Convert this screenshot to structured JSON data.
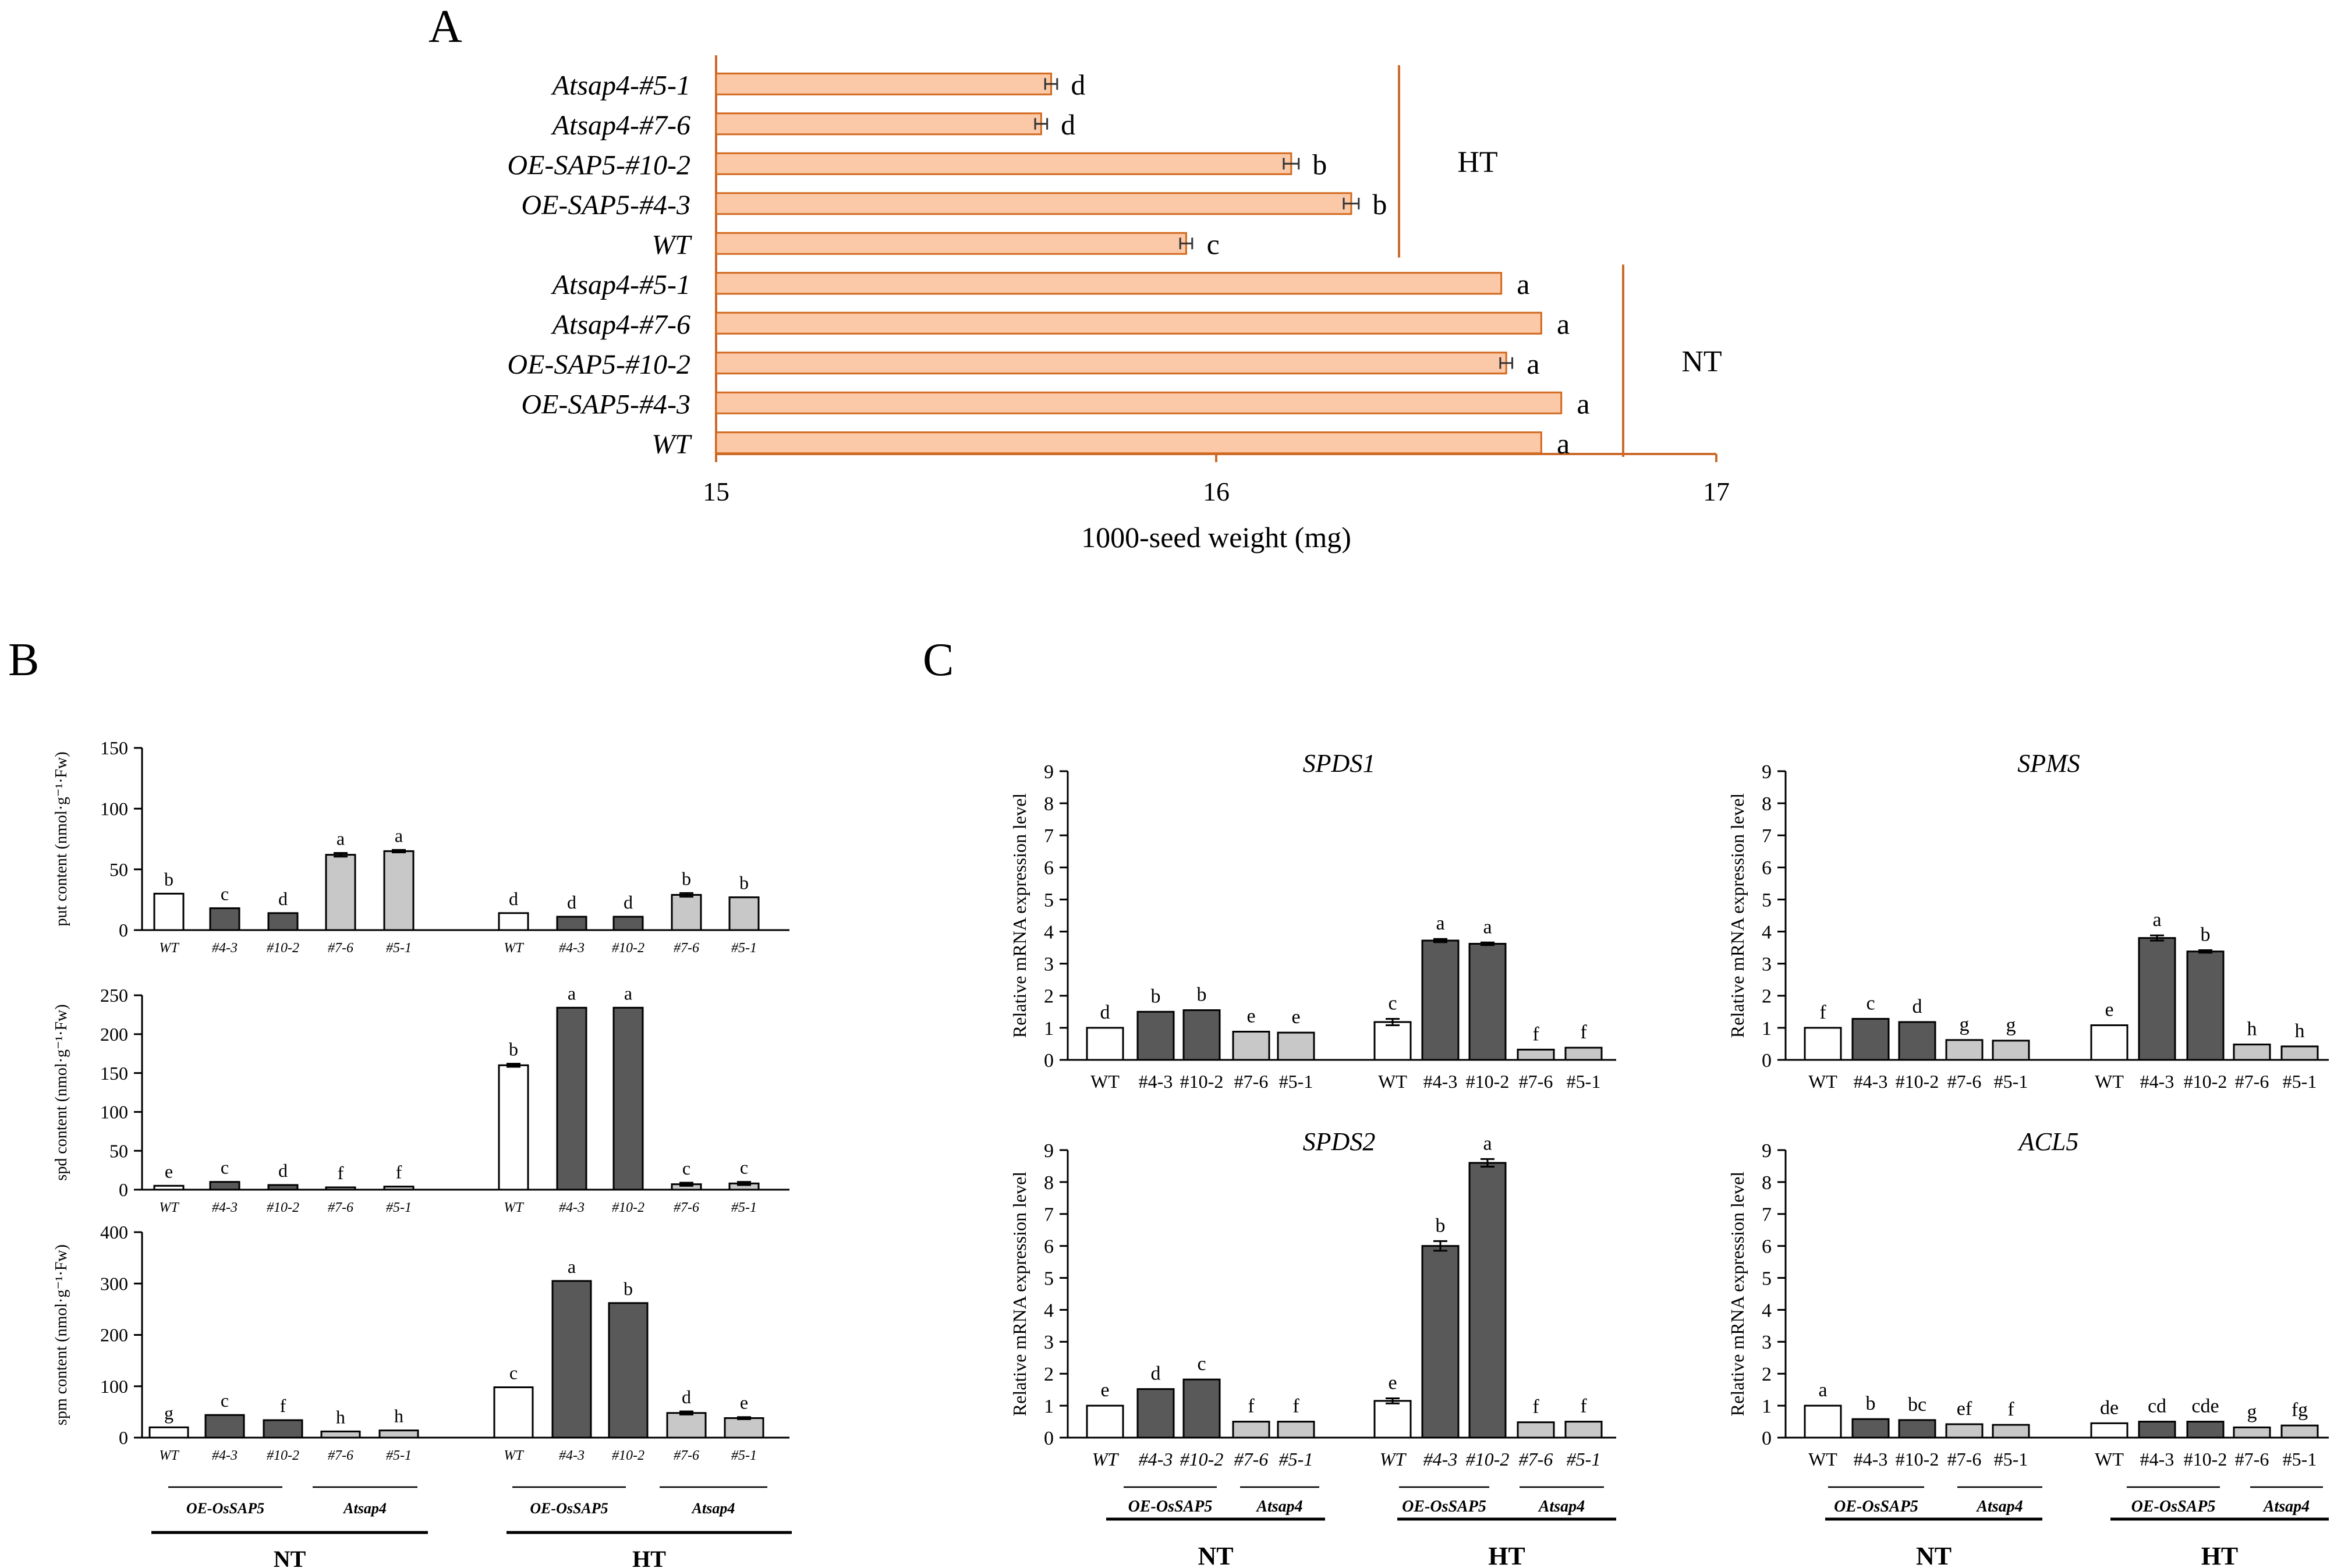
{
  "colors": {
    "bar_peach": "#fbc9a8",
    "bar_peach_edge": "#d2691e",
    "axis_orange": "#cc6a2c",
    "bar_white": "#ffffff",
    "bar_dark": "#595959",
    "bar_light": "#c8c8c8",
    "ink": "#000000"
  },
  "panels": {
    "A": "A",
    "B": "B",
    "C": "C"
  },
  "chart_data": [
    {
      "id": "A",
      "type": "bar",
      "orientation": "horizontal",
      "xlabel": "1000-seed weight (mg)",
      "xlim": [
        15,
        17
      ],
      "xticks": [
        "15",
        "16",
        "17"
      ],
      "categories": [
        "Atsap4-#5-1",
        "Atsap4-#7-6",
        "OE-SAP5-#10-2",
        "OE-SAP5-#4-3",
        "WT",
        "Atsap4-#5-1",
        "Atsap4-#7-6",
        "OE-SAP5-#10-2",
        "OE-SAP5-#4-3",
        "WT"
      ],
      "values": [
        15.67,
        15.65,
        16.15,
        16.27,
        15.94,
        16.57,
        16.65,
        16.58,
        16.69,
        16.65
      ],
      "errors": [
        0.012,
        0.012,
        0.015,
        0.015,
        0.012,
        0.002,
        0.002,
        0.012,
        0.002,
        0.002
      ],
      "labels": [
        "d",
        "d",
        "b",
        "b",
        "c",
        "a",
        "a",
        "a",
        "a",
        "a"
      ],
      "groups": [
        {
          "name": "HT",
          "from": 0,
          "to": 4
        },
        {
          "name": "NT",
          "from": 5,
          "to": 9
        }
      ]
    },
    {
      "id": "B1",
      "type": "bar",
      "ylabel": "put content (nmol·g⁻¹·Fw)",
      "ylim": [
        0,
        150
      ],
      "yticks": [
        "0",
        "50",
        "100",
        "150"
      ],
      "categories": [
        "WT",
        "#4-3",
        "#10-2",
        "#7-6",
        "#5-1",
        "WT",
        "#4-3",
        "#10-2",
        "#7-6",
        "#5-1"
      ],
      "values": [
        30,
        18,
        14,
        62,
        65,
        14,
        11,
        11,
        29,
        27
      ],
      "errors": [
        0,
        0,
        0,
        1.5,
        1,
        0,
        0,
        0,
        1.5,
        0
      ],
      "labels": [
        "b",
        "c",
        "d",
        "a",
        "a",
        "d",
        "d",
        "d",
        "b",
        "b"
      ],
      "shades": [
        "white",
        "dark",
        "dark",
        "light",
        "light",
        "white",
        "dark",
        "dark",
        "light",
        "light"
      ]
    },
    {
      "id": "B2",
      "type": "bar",
      "ylabel": "spd content (nmol·g⁻¹·Fw)",
      "ylim": [
        0,
        250
      ],
      "yticks": [
        "0",
        "50",
        "100",
        "150",
        "200",
        "250"
      ],
      "categories": [
        "WT",
        "#4-3",
        "#10-2",
        "#7-6",
        "#5-1",
        "WT",
        "#4-3",
        "#10-2",
        "#7-6",
        "#5-1"
      ],
      "values": [
        5,
        10,
        6,
        3,
        4,
        160,
        234,
        234,
        7,
        8
      ],
      "errors": [
        0,
        0,
        0,
        0,
        0,
        2,
        0,
        0,
        2,
        2
      ],
      "labels": [
        "e",
        "c",
        "d",
        "f",
        "f",
        "b",
        "a",
        "a",
        "c",
        "c"
      ],
      "shades": [
        "white",
        "dark",
        "dark",
        "light",
        "light",
        "white",
        "dark",
        "dark",
        "light",
        "light"
      ]
    },
    {
      "id": "B3",
      "type": "bar",
      "ylabel": "spm content (nmol·g⁻¹·Fw)",
      "ylim": [
        0,
        400
      ],
      "yticks": [
        "0",
        "100",
        "200",
        "300",
        "400"
      ],
      "categories": [
        "WT",
        "#4-3",
        "#10-2",
        "#7-6",
        "#5-1",
        "WT",
        "#4-3",
        "#10-2",
        "#7-6",
        "#5-1"
      ],
      "values": [
        20,
        44,
        34,
        12,
        14,
        98,
        305,
        262,
        48,
        38
      ],
      "errors": [
        0,
        0,
        0,
        0,
        0,
        0,
        0,
        0,
        3,
        2
      ],
      "labels": [
        "g",
        "c",
        "f",
        "h",
        "h",
        "c",
        "a",
        "b",
        "d",
        "e"
      ],
      "shades": [
        "white",
        "dark",
        "dark",
        "light",
        "light",
        "white",
        "dark",
        "dark",
        "light",
        "light"
      ],
      "group_labels": {
        "oe": "OE-OsSAP5",
        "at": "Atsap4",
        "nt": "NT",
        "ht": "HT"
      }
    },
    {
      "id": "C1",
      "type": "bar",
      "title": "SPDS1",
      "ylabel": "Relative mRNA expression level",
      "ylim": [
        0,
        9
      ],
      "yticks": [
        "0",
        "1",
        "2",
        "3",
        "4",
        "5",
        "6",
        "7",
        "8",
        "9"
      ],
      "categories": [
        "WT",
        "#4-3",
        "#10-2",
        "#7-6",
        "#5-1",
        "WT",
        "#4-3",
        "#10-2",
        "#7-6",
        "#5-1"
      ],
      "values": [
        1.0,
        1.5,
        1.55,
        0.88,
        0.85,
        1.18,
        3.72,
        3.62,
        0.32,
        0.38
      ],
      "errors": [
        0,
        0,
        0,
        0,
        0,
        0.1,
        0.05,
        0.04,
        0,
        0
      ],
      "labels": [
        "d",
        "b",
        "b",
        "e",
        "e",
        "c",
        "a",
        "a",
        "f",
        "f"
      ],
      "shades": [
        "white",
        "dark",
        "dark",
        "light",
        "light",
        "white",
        "dark",
        "dark",
        "light",
        "light"
      ]
    },
    {
      "id": "C2",
      "type": "bar",
      "title": "SPMS",
      "ylabel": "Relative mRNA expression level",
      "ylim": [
        0,
        9
      ],
      "yticks": [
        "0",
        "1",
        "2",
        "3",
        "4",
        "5",
        "6",
        "7",
        "8",
        "9"
      ],
      "categories": [
        "WT",
        "#4-3",
        "#10-2",
        "#7-6",
        "#5-1",
        "WT",
        "#4-3",
        "#10-2",
        "#7-6",
        "#5-1"
      ],
      "values": [
        1.0,
        1.28,
        1.18,
        0.62,
        0.6,
        1.08,
        3.8,
        3.38,
        0.48,
        0.42
      ],
      "errors": [
        0,
        0,
        0,
        0,
        0,
        0,
        0.08,
        0.04,
        0,
        0
      ],
      "labels": [
        "f",
        "c",
        "d",
        "g",
        "g",
        "e",
        "a",
        "b",
        "h",
        "h"
      ],
      "shades": [
        "white",
        "dark",
        "dark",
        "light",
        "light",
        "white",
        "dark",
        "dark",
        "light",
        "light"
      ]
    },
    {
      "id": "C3",
      "type": "bar",
      "title": "SPDS2",
      "ylabel": "Relative mRNA expression level",
      "ylim": [
        0,
        9
      ],
      "yticks": [
        "0",
        "1",
        "2",
        "3",
        "4",
        "5",
        "6",
        "7",
        "8",
        "9"
      ],
      "categories": [
        "WT",
        "#4-3",
        "#10-2",
        "#7-6",
        "#5-1",
        "WT",
        "#4-3",
        "#10-2",
        "#7-6",
        "#5-1"
      ],
      "values": [
        1.0,
        1.52,
        1.82,
        0.5,
        0.5,
        1.15,
        6.0,
        8.6,
        0.48,
        0.5
      ],
      "errors": [
        0,
        0,
        0,
        0,
        0,
        0.08,
        0.15,
        0.12,
        0,
        0
      ],
      "labels": [
        "e",
        "d",
        "c",
        "f",
        "f",
        "e",
        "b",
        "a",
        "f",
        "f"
      ],
      "shades": [
        "white",
        "dark",
        "dark",
        "light",
        "light",
        "white",
        "dark",
        "dark",
        "light",
        "light"
      ],
      "group_labels": {
        "oe": "OE-OsSAP5",
        "at": "Atsap4",
        "nt": "NT",
        "ht": "HT"
      }
    },
    {
      "id": "C4",
      "type": "bar",
      "title": "ACL5",
      "ylabel": "Relative mRNA expression level",
      "ylim": [
        0,
        9
      ],
      "yticks": [
        "0",
        "1",
        "2",
        "3",
        "4",
        "5",
        "6",
        "7",
        "8",
        "9"
      ],
      "categories": [
        "WT",
        "#4-3",
        "#10-2",
        "#7-6",
        "#5-1",
        "WT",
        "#4-3",
        "#10-2",
        "#7-6",
        "#5-1"
      ],
      "values": [
        1.0,
        0.58,
        0.55,
        0.42,
        0.4,
        0.45,
        0.5,
        0.5,
        0.32,
        0.38
      ],
      "errors": [
        0,
        0,
        0,
        0,
        0,
        0,
        0,
        0,
        0,
        0
      ],
      "labels": [
        "a",
        "b",
        "bc",
        "ef",
        "f",
        "de",
        "cd",
        "cde",
        "g",
        "fg"
      ],
      "shades": [
        "white",
        "dark",
        "dark",
        "light",
        "light",
        "white",
        "dark",
        "dark",
        "light",
        "light"
      ],
      "group_labels": {
        "oe": "OE-OsSAP5",
        "at": "Atsap4",
        "nt": "NT",
        "ht": "HT"
      }
    }
  ]
}
